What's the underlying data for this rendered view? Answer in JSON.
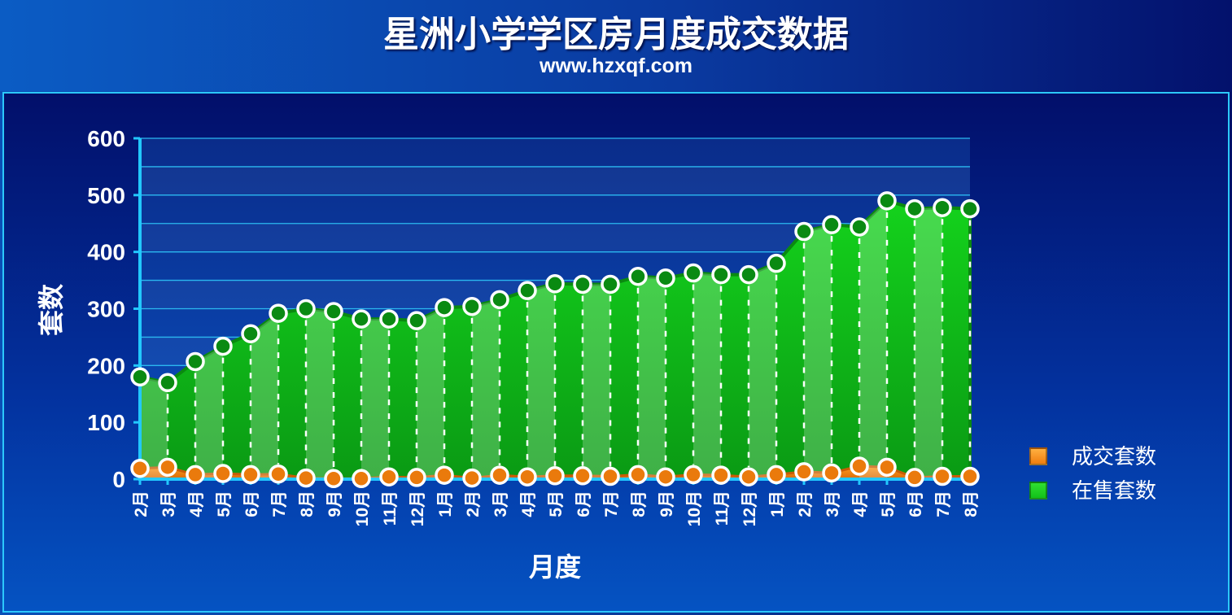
{
  "header": {
    "title": "星洲小学学区房月度成交数据",
    "subtitle": "www.hzxqf.com"
  },
  "colors": {
    "sold": "#f07d0f",
    "listed": "#12c21a",
    "grid": "#2bb8f0",
    "marker_fill": "#ffffff"
  },
  "chart_data": {
    "type": "area",
    "xlabel": "月度",
    "ylabel": "套数",
    "ylim": [
      0,
      600
    ],
    "yticks": [
      0,
      100,
      200,
      300,
      400,
      500,
      600
    ],
    "grid": true,
    "legend_position": "right",
    "categories": [
      "2月",
      "3月",
      "4月",
      "5月",
      "6月",
      "7月",
      "8月",
      "9月",
      "10月",
      "11月",
      "12月",
      "1月",
      "2月",
      "3月",
      "4月",
      "5月",
      "6月",
      "7月",
      "8月",
      "9月",
      "10月",
      "11月",
      "12月",
      "1月",
      "2月",
      "3月",
      "4月",
      "5月",
      "6月",
      "7月",
      "8月"
    ],
    "series": [
      {
        "name": "成交套数",
        "color": "#f07d0f",
        "values": [
          19,
          21,
          8,
          10,
          8,
          9,
          2,
          1,
          1,
          4,
          3,
          7,
          2,
          7,
          4,
          6,
          6,
          5,
          8,
          4,
          8,
          7,
          4,
          8,
          13,
          11,
          23,
          21,
          3,
          5,
          5
        ]
      },
      {
        "name": "在售套数",
        "color": "#12c21a",
        "values": [
          180,
          170,
          207,
          234,
          256,
          292,
          300,
          295,
          282,
          282,
          279,
          302,
          304,
          316,
          332,
          344,
          343,
          343,
          357,
          354,
          363,
          360,
          360,
          380,
          436,
          448,
          444,
          490,
          476,
          478,
          476
        ]
      }
    ]
  },
  "legend": {
    "items": [
      {
        "label": "成交套数",
        "color": "#f07d0f"
      },
      {
        "label": "在售套数",
        "color": "#12c21a"
      }
    ]
  }
}
